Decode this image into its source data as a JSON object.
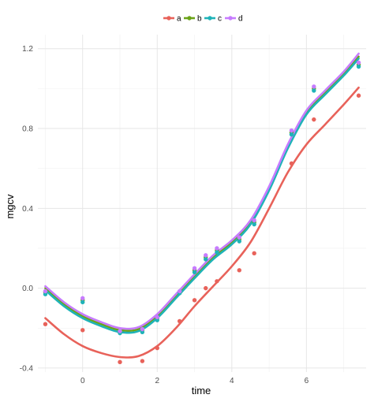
{
  "chart_data": {
    "type": "scatter",
    "xlabel": "time",
    "ylabel": "mgcv",
    "xlim": [
      -1.2,
      7.6
    ],
    "ylim": [
      -0.42,
      1.27
    ],
    "x_ticks": [
      0,
      2,
      4,
      6
    ],
    "y_ticks": [
      -0.4,
      0.0,
      0.4,
      0.8,
      1.2
    ],
    "y_tick_labels": [
      "-0.4",
      "0.0",
      "0.4",
      "0.8",
      "1.2"
    ],
    "x_tick_labels": [
      "0",
      "2",
      "4",
      "6"
    ],
    "grid": true,
    "legend_position": "top",
    "series": [
      {
        "name": "a",
        "color": "#E8625A",
        "points": [
          [
            -1,
            -0.18
          ],
          [
            0,
            -0.21
          ],
          [
            1,
            -0.37
          ],
          [
            1.6,
            -0.365
          ],
          [
            2,
            -0.3
          ],
          [
            2.6,
            -0.165
          ],
          [
            3,
            -0.06
          ],
          [
            3.3,
            0.0
          ],
          [
            3.6,
            0.035
          ],
          [
            4.2,
            0.09
          ],
          [
            4.6,
            0.175
          ],
          [
            5.6,
            0.625
          ],
          [
            6.2,
            0.845
          ],
          [
            7.4,
            0.965
          ]
        ],
        "line": [
          [
            -1,
            -0.15
          ],
          [
            -0.5,
            -0.23
          ],
          [
            0,
            -0.29
          ],
          [
            0.5,
            -0.325
          ],
          [
            1,
            -0.345
          ],
          [
            1.5,
            -0.34
          ],
          [
            2,
            -0.29
          ],
          [
            2.5,
            -0.2
          ],
          [
            3,
            -0.09
          ],
          [
            3.5,
            0.01
          ],
          [
            4,
            0.11
          ],
          [
            4.5,
            0.23
          ],
          [
            5,
            0.4
          ],
          [
            5.5,
            0.58
          ],
          [
            6,
            0.72
          ],
          [
            6.5,
            0.82
          ],
          [
            7,
            0.92
          ],
          [
            7.4,
            1.005
          ]
        ]
      },
      {
        "name": "b",
        "color": "#6BA318",
        "points": [
          [
            -1,
            -0.02
          ],
          [
            0,
            -0.06
          ],
          [
            1,
            -0.22
          ],
          [
            1.6,
            -0.21
          ],
          [
            2,
            -0.15
          ],
          [
            2.6,
            -0.02
          ],
          [
            3,
            0.09
          ],
          [
            3.3,
            0.155
          ],
          [
            3.6,
            0.19
          ],
          [
            4.2,
            0.245
          ],
          [
            4.6,
            0.33
          ],
          [
            5.6,
            0.78
          ],
          [
            6.2,
            1.0
          ],
          [
            7.4,
            1.12
          ]
        ],
        "line": [
          [
            -1,
            0.0
          ],
          [
            -0.5,
            -0.08
          ],
          [
            0,
            -0.14
          ],
          [
            0.5,
            -0.18
          ],
          [
            1,
            -0.21
          ],
          [
            1.5,
            -0.205
          ],
          [
            2,
            -0.14
          ],
          [
            2.5,
            -0.04
          ],
          [
            3,
            0.06
          ],
          [
            3.5,
            0.155
          ],
          [
            4,
            0.23
          ],
          [
            4.5,
            0.33
          ],
          [
            5,
            0.5
          ],
          [
            5.5,
            0.71
          ],
          [
            6,
            0.88
          ],
          [
            6.5,
            0.98
          ],
          [
            7,
            1.075
          ],
          [
            7.4,
            1.16
          ]
        ]
      },
      {
        "name": "c",
        "color": "#1FB3B8",
        "points": [
          [
            -1,
            -0.03
          ],
          [
            0,
            -0.07
          ],
          [
            1,
            -0.225
          ],
          [
            1.6,
            -0.22
          ],
          [
            2,
            -0.16
          ],
          [
            2.6,
            -0.025
          ],
          [
            3,
            0.08
          ],
          [
            3.3,
            0.145
          ],
          [
            3.6,
            0.18
          ],
          [
            4.2,
            0.235
          ],
          [
            4.6,
            0.32
          ],
          [
            5.6,
            0.77
          ],
          [
            6.2,
            0.99
          ],
          [
            7.4,
            1.11
          ]
        ],
        "line": [
          [
            -1,
            -0.01
          ],
          [
            -0.5,
            -0.09
          ],
          [
            0,
            -0.15
          ],
          [
            0.5,
            -0.19
          ],
          [
            1,
            -0.22
          ],
          [
            1.5,
            -0.215
          ],
          [
            2,
            -0.15
          ],
          [
            2.5,
            -0.05
          ],
          [
            3,
            0.05
          ],
          [
            3.5,
            0.145
          ],
          [
            4,
            0.22
          ],
          [
            4.5,
            0.32
          ],
          [
            5,
            0.49
          ],
          [
            5.5,
            0.7
          ],
          [
            6,
            0.87
          ],
          [
            6.5,
            0.97
          ],
          [
            7,
            1.065
          ],
          [
            7.4,
            1.15
          ]
        ]
      },
      {
        "name": "d",
        "color": "#C77CFF",
        "points": [
          [
            -1,
            -0.015
          ],
          [
            0,
            -0.05
          ],
          [
            1,
            -0.215
          ],
          [
            1.6,
            -0.205
          ],
          [
            2,
            -0.145
          ],
          [
            2.6,
            -0.015
          ],
          [
            3,
            0.1
          ],
          [
            3.3,
            0.165
          ],
          [
            3.6,
            0.2
          ],
          [
            4.2,
            0.255
          ],
          [
            4.6,
            0.34
          ],
          [
            5.6,
            0.79
          ],
          [
            6.2,
            1.01
          ],
          [
            7.4,
            1.13
          ]
        ],
        "line": [
          [
            -1,
            0.01
          ],
          [
            -0.5,
            -0.07
          ],
          [
            0,
            -0.13
          ],
          [
            0.5,
            -0.17
          ],
          [
            1,
            -0.2
          ],
          [
            1.5,
            -0.195
          ],
          [
            2,
            -0.13
          ],
          [
            2.5,
            -0.03
          ],
          [
            3,
            0.07
          ],
          [
            3.5,
            0.165
          ],
          [
            4,
            0.24
          ],
          [
            4.5,
            0.34
          ],
          [
            5,
            0.51
          ],
          [
            5.5,
            0.72
          ],
          [
            6,
            0.89
          ],
          [
            6.5,
            0.99
          ],
          [
            7,
            1.085
          ],
          [
            7.4,
            1.175
          ]
        ]
      }
    ]
  }
}
